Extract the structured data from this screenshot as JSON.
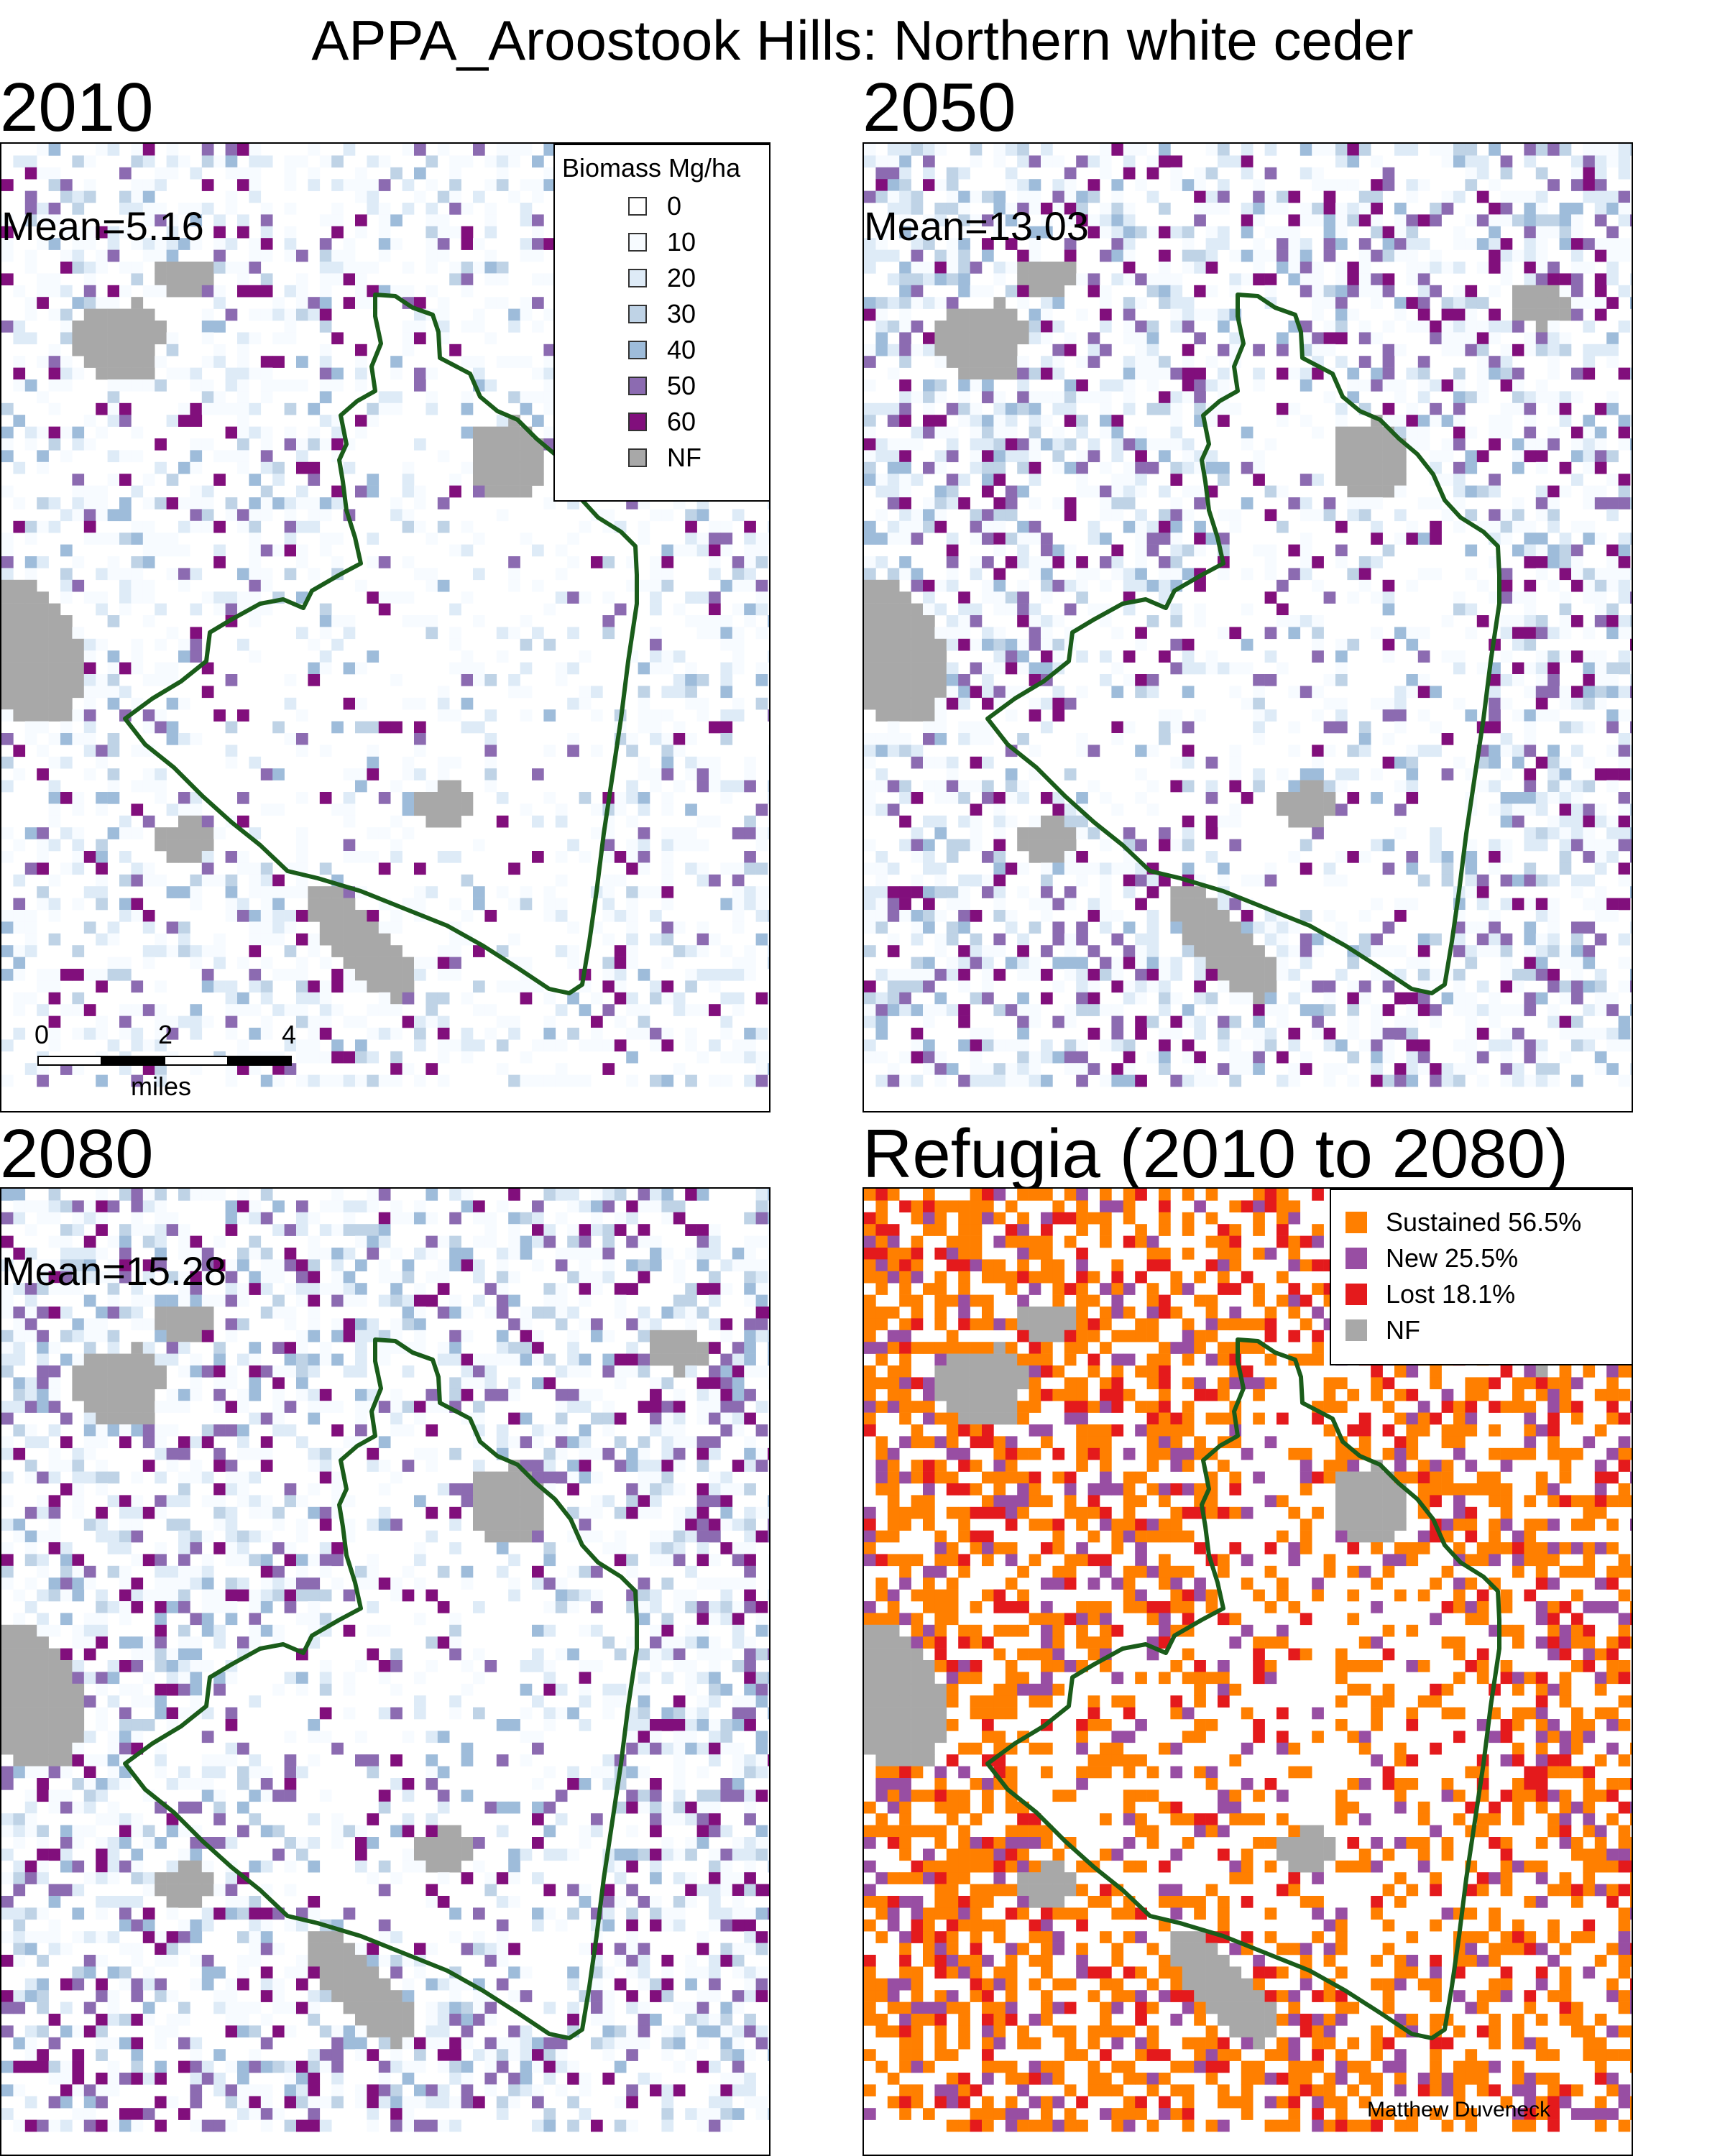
{
  "title": "APPA_Aroostook Hills: Northern white ceder",
  "colors": {
    "nf": "#a8a8a8",
    "boundary": "#1a5c1a",
    "bio": [
      "#ffffff",
      "#f4fafd",
      "#deebf7",
      "#bfcfe6",
      "#9ea7d0",
      "#8a4ea6",
      "#7b0f7b"
    ],
    "sustained": "#ff7f00",
    "new": "#984ea3",
    "lost": "#e41a1c"
  },
  "panels": [
    {
      "title": "2010",
      "mean": "Mean=5.16"
    },
    {
      "title": "2050",
      "mean": "Mean=13.03"
    },
    {
      "title": "2080",
      "mean": "Mean=15.28"
    },
    {
      "title": "Refugia (2010 to 2080)"
    }
  ],
  "biomass_legend": {
    "title": "Biomass Mg/ha",
    "items": [
      {
        "label": "0",
        "color": "#ffffff"
      },
      {
        "label": "10",
        "color": "#f7fbff"
      },
      {
        "label": "20",
        "color": "#deebf7"
      },
      {
        "label": "30",
        "color": "#bfd3e6"
      },
      {
        "label": "40",
        "color": "#9ebcda"
      },
      {
        "label": "50",
        "color": "#8c6bb1"
      },
      {
        "label": "60",
        "color": "#810f7c"
      },
      {
        "label": "NF",
        "color": "#a8a8a8"
      }
    ]
  },
  "refugia_legend": {
    "items": [
      {
        "label": "Sustained 56.5%",
        "color": "#ff7f00"
      },
      {
        "label": "New 25.5%",
        "color": "#984ea3"
      },
      {
        "label": "Lost 18.1%",
        "color": "#e41a1c"
      },
      {
        "label": "NF",
        "color": "#a8a8a8"
      }
    ]
  },
  "scalebar": {
    "ticks": [
      "0",
      "2",
      "4"
    ],
    "units": "miles"
  },
  "credit": "Matthew Duveneck"
}
